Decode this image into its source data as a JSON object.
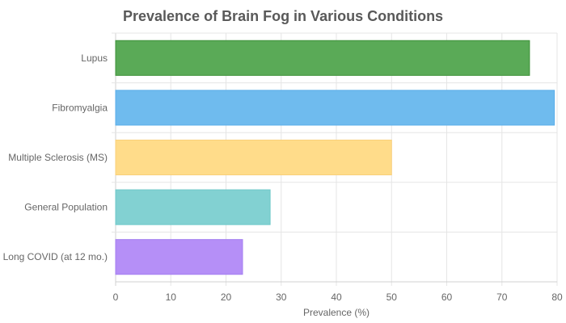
{
  "chart_data": {
    "type": "bar",
    "orientation": "horizontal",
    "title": "Prevalence of Brain Fog in Various Conditions",
    "xlabel": "Prevalence (%)",
    "ylabel": "",
    "xlim": [
      0,
      80
    ],
    "xticks": [
      "0",
      "10",
      "20",
      "30",
      "40",
      "50",
      "60",
      "70",
      "80"
    ],
    "grid": true,
    "legend": "none",
    "categories": [
      "Lupus",
      "Fibromyalgia",
      "Multiple Sclerosis (MS)",
      "General Population",
      "Long COVID (at 12 mo.)"
    ],
    "values": [
      75,
      79.5,
      50,
      28,
      23
    ],
    "colors": [
      "#5aaa57",
      "#6fbbee",
      "#ffdc8a",
      "#82d1d2",
      "#b58ff7"
    ],
    "borders": [
      "#3d9139",
      "#5aaeea",
      "#f9d07a",
      "#6ec8c9",
      "#a47ef0"
    ]
  }
}
